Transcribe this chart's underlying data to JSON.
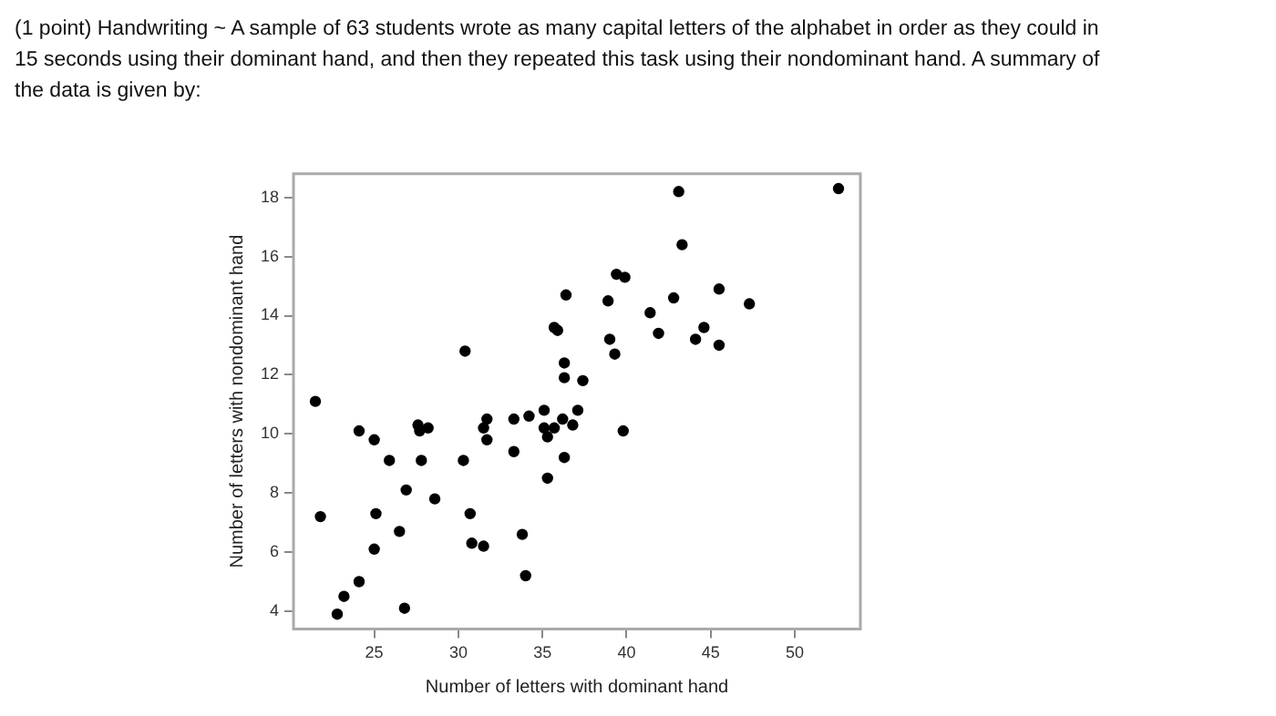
{
  "chart_data": {
    "type": "scatter",
    "title": "(1 point) Handwriting ~ A sample of 63 students wrote as many capital letters of the alphabet in order as they could in 15 seconds using their dominant hand, and then they repeated this task using their nondominant hand. A summary of the data is given by:",
    "xlabel": "Number of letters with dominant hand",
    "ylabel": "Number of letters with nondominant hand",
    "color": "#000000",
    "marker": "circle",
    "x": [
      21.5,
      30.4,
      43.1,
      52.6,
      43.3,
      39.4,
      39.9,
      36.4,
      38.9,
      45.5,
      42.8,
      47.3,
      41.4,
      35.7,
      35.9,
      41.9,
      44.6,
      39.0,
      44.1,
      45.5,
      39.3,
      36.3,
      36.3,
      37.4,
      35.1,
      36.2,
      37.1,
      35.1,
      35.7,
      36.8,
      35.3,
      36.3,
      35.3,
      39.8,
      24.1,
      25.0,
      27.6,
      27.7,
      28.2,
      25.9,
      27.8,
      30.3,
      31.5,
      31.7,
      31.7,
      33.3,
      34.2,
      33.3,
      21.8,
      26.9,
      28.6,
      25.1,
      30.7,
      26.5,
      33.8,
      25.0,
      30.8,
      31.5,
      24.1,
      34.0,
      23.2,
      22.8,
      26.8
    ],
    "values": [
      11.1,
      12.8,
      18.2,
      18.3,
      16.4,
      15.4,
      15.3,
      14.7,
      14.5,
      14.9,
      14.6,
      14.4,
      14.1,
      13.6,
      13.5,
      13.4,
      13.6,
      13.2,
      13.2,
      13.0,
      12.7,
      12.4,
      11.9,
      11.8,
      10.8,
      10.5,
      10.8,
      10.2,
      10.2,
      10.3,
      9.9,
      9.2,
      8.5,
      10.1,
      10.1,
      9.8,
      10.3,
      10.1,
      10.2,
      9.1,
      9.1,
      9.1,
      10.2,
      10.5,
      9.8,
      10.5,
      10.6,
      9.4,
      7.2,
      8.1,
      7.8,
      7.3,
      7.3,
      6.7,
      6.6,
      6.1,
      6.3,
      6.2,
      5.0,
      5.2,
      4.5,
      3.9,
      4.1
    ],
    "xlim": [
      20.2,
      53.9
    ],
    "ylim": [
      3.4,
      18.8
    ],
    "xticks": [
      25,
      30,
      35,
      40,
      45,
      50
    ],
    "yticks": [
      4,
      6,
      8,
      10,
      12,
      14,
      16,
      18
    ]
  }
}
